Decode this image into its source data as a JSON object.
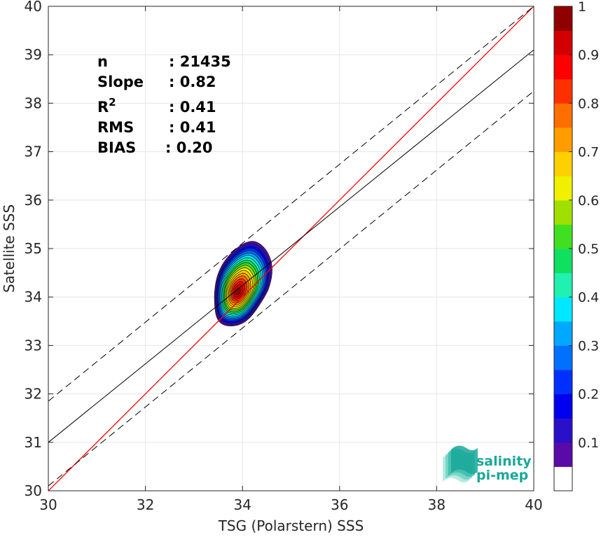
{
  "chart_data": {
    "type": "scatter",
    "subtype": "density-contour",
    "xlabel": "TSG (Polarstern) SSS",
    "ylabel": "Satellite SSS",
    "xlim": [
      30,
      40
    ],
    "ylim": [
      30,
      40
    ],
    "x_ticks": [
      30,
      32,
      34,
      36,
      38,
      40
    ],
    "y_ticks": [
      30,
      31,
      32,
      33,
      34,
      35,
      36,
      37,
      38,
      39,
      40
    ],
    "grid": true,
    "stats": [
      {
        "label": "n",
        "value": ": 21435"
      },
      {
        "label": "Slope",
        "value": ": 0.82"
      },
      {
        "label": "R",
        "sup": "2",
        "value": ": 0.41"
      },
      {
        "label": "RMS",
        "value": ": 0.41"
      },
      {
        "label": "BIAS",
        "value": ": 0.20"
      }
    ],
    "lines": [
      {
        "role": "identity",
        "color": "#ff0000",
        "style": "solid",
        "x": [
          30,
          40
        ],
        "y": [
          30,
          40
        ]
      },
      {
        "role": "regression",
        "color": "#000000",
        "style": "solid",
        "x": [
          30,
          40
        ],
        "y": [
          31.0,
          39.1
        ]
      },
      {
        "role": "upper-bound",
        "color": "#000000",
        "style": "dashed",
        "x": [
          30,
          40
        ],
        "y": [
          31.85,
          40.0
        ]
      },
      {
        "role": "lower-bound",
        "color": "#000000",
        "style": "dashed",
        "x": [
          30,
          40
        ],
        "y": [
          30.1,
          38.25
        ]
      }
    ],
    "density": {
      "center_x": 33.9,
      "center_y": 34.1,
      "outer_x_range": [
        33.45,
        34.55
      ],
      "outer_y_range": [
        33.35,
        35.1
      ],
      "levels": [
        0.05,
        0.1,
        0.15,
        0.2,
        0.25,
        0.3,
        0.35,
        0.4,
        0.45,
        0.5,
        0.55,
        0.6,
        0.65,
        0.7,
        0.75,
        0.8,
        0.85,
        0.9,
        0.95
      ]
    },
    "colorbar": {
      "ticks": [
        "0.1",
        "0.2",
        "0.3",
        "0.4",
        "0.5",
        "0.6",
        "0.7",
        "0.8",
        "0.9",
        "1"
      ],
      "colors": [
        "#ffffff",
        "#5a0aa8",
        "#2a10c8",
        "#0000f0",
        "#0030ff",
        "#0070ff",
        "#00a8ff",
        "#00e8ff",
        "#20f0b0",
        "#10e060",
        "#40e020",
        "#a0e000",
        "#f0f000",
        "#ffd000",
        "#ff9c00",
        "#ff6e00",
        "#ff3000",
        "#ff0000",
        "#d40000",
        "#900000"
      ]
    },
    "logo": {
      "line1": "salinity",
      "line2": "pi-mep",
      "color": "#1aa89a"
    }
  }
}
